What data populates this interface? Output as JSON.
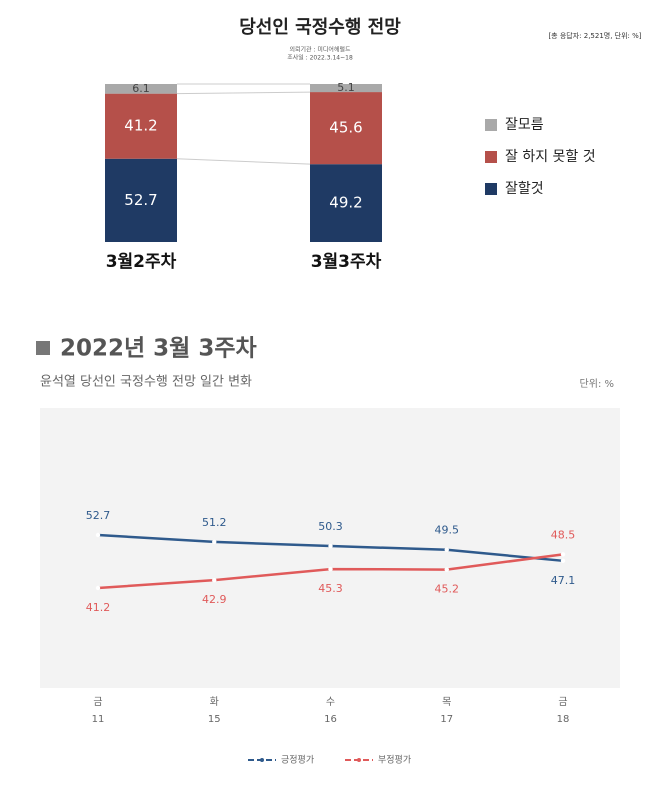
{
  "chart_data": [
    {
      "type": "stacked_bar",
      "title": "당선인 국정수행 전망",
      "subtitle": [
        "의뢰기관 : 미디어헤럴드",
        "조사일 : 2022.3.14~18"
      ],
      "note": "[총 응답자: 2,521명, 단위: %]",
      "categories": [
        "3월2주차",
        "3월3주차"
      ],
      "series": [
        {
          "name": "잘할것",
          "color": "#1f3a64",
          "values": [
            52.7,
            49.2
          ]
        },
        {
          "name": "잘 하지 못할 것",
          "color": "#b5504a",
          "values": [
            41.2,
            45.6
          ]
        },
        {
          "name": "잘모름",
          "color": "#a9a9a9",
          "values": [
            6.1,
            5.1
          ]
        }
      ]
    },
    {
      "type": "line",
      "title": "2022년 3월 3주차",
      "subtitle": "윤석열 당선인 국정수행 전망 일간 변화",
      "unit": "단위: %",
      "categories": [
        "금",
        "화",
        "수",
        "목",
        "금"
      ],
      "days": [
        "11",
        "15",
        "16",
        "17",
        "18"
      ],
      "series": [
        {
          "name": "긍정평가",
          "color": "#2f5a8c",
          "values": [
            52.7,
            51.2,
            50.3,
            49.5,
            47.1
          ]
        },
        {
          "name": "부정평가",
          "color": "#e05a5a",
          "values": [
            41.2,
            42.9,
            45.3,
            45.2,
            48.5
          ]
        }
      ]
    }
  ]
}
